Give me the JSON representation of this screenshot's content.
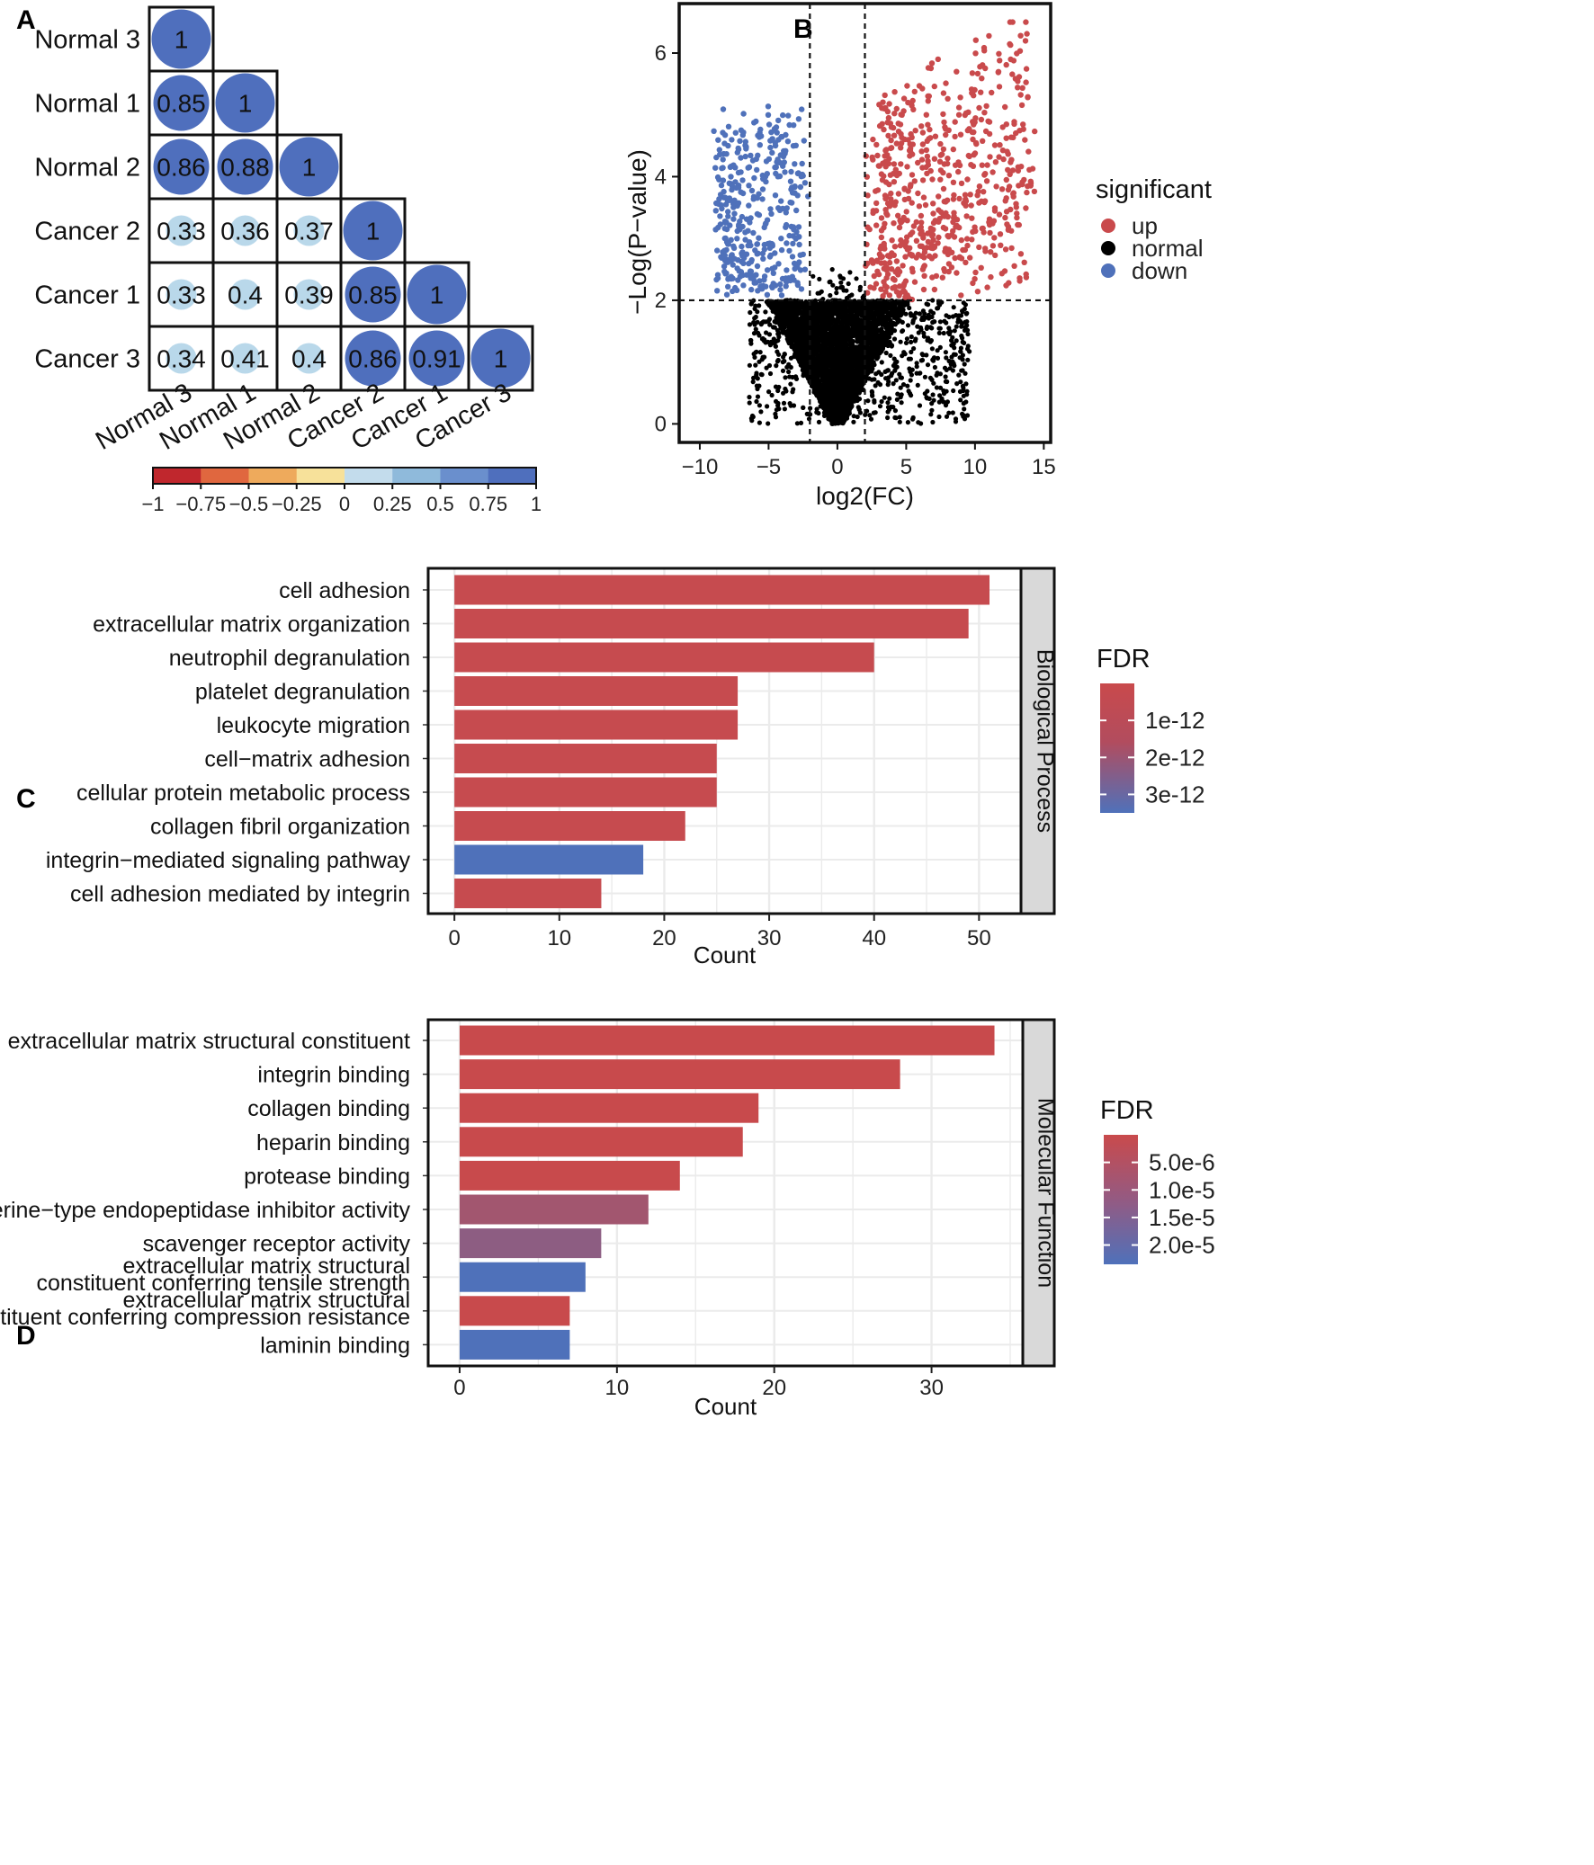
{
  "colors": {
    "up": "#c94a4c",
    "down": "#4f71ba",
    "normal": "#000000",
    "fdr_low": "#c94a4c",
    "fdr_high": "#4f71ba",
    "grid": "#ebebeb",
    "strip_bg": "#d9d9d9"
  },
  "chart_data": [
    {
      "panel": "A",
      "type": "heatmap",
      "title": "",
      "labels": [
        "Normal 3",
        "Normal 1",
        "Normal 2",
        "Cancer 2",
        "Cancer 1",
        "Cancer 3"
      ],
      "matrix": [
        [
          1
        ],
        [
          0.85,
          1
        ],
        [
          0.86,
          0.88,
          1
        ],
        [
          0.33,
          0.36,
          0.37,
          1
        ],
        [
          0.33,
          0.4,
          0.39,
          0.85,
          1
        ],
        [
          0.34,
          0.41,
          0.4,
          0.86,
          0.91,
          1
        ]
      ],
      "colorbar": {
        "ticks": [
          "−1",
          "−0.75",
          "−0.5",
          "−0.25",
          "0",
          "0.25",
          "0.5",
          "0.75",
          "1"
        ],
        "colors": [
          "#c0272d",
          "#e0673f",
          "#eeaa5c",
          "#f7e19a",
          "#eef5fa",
          "#c3dcec",
          "#8fbadb",
          "#6a8fcd",
          "#4f6fbd"
        ]
      }
    },
    {
      "panel": "B",
      "type": "scatter",
      "title": "",
      "xlabel": "log2(FC)",
      "ylabel": "−Log(P−value)",
      "xlim": [
        -11.5,
        15.5
      ],
      "ylim": [
        -0.3,
        6.8
      ],
      "xticks": [
        "−10",
        "−5",
        "0",
        "5",
        "10",
        "15"
      ],
      "xtick_values": [
        -10,
        -5,
        0,
        5,
        10,
        15
      ],
      "yticks": [
        "0",
        "2",
        "4",
        "6"
      ],
      "ytick_values": [
        0,
        2,
        4,
        6
      ],
      "vlines": [
        -2,
        2
      ],
      "hline": 2,
      "legend": {
        "title": "significant",
        "entries": [
          {
            "label": "up",
            "key": "up"
          },
          {
            "label": "normal",
            "key": "normal"
          },
          {
            "label": "down",
            "key": "down"
          }
        ]
      },
      "point_groups": [
        {
          "group": "up",
          "n": 620,
          "x_range": [
            2,
            14.5
          ],
          "y_range": [
            2,
            6.5
          ]
        },
        {
          "group": "down",
          "n": 380,
          "x_range": [
            -10,
            -2
          ],
          "y_range": [
            2,
            5.9
          ]
        },
        {
          "group": "normal",
          "n": 4200,
          "x_range": [
            -8,
            11
          ],
          "y_range": [
            0,
            2.5
          ]
        }
      ]
    },
    {
      "panel": "C",
      "type": "bar",
      "orientation": "horizontal",
      "facet": "Biological Process",
      "xlabel": "Count",
      "xlim": [
        -2.5,
        54
      ],
      "xticks": [
        0,
        10,
        20,
        30,
        40,
        50
      ],
      "categories": [
        "cell adhesion",
        "extracellular matrix organization",
        "neutrophil degranulation",
        "platelet degranulation",
        "leukocyte migration",
        "cell−matrix adhesion",
        "cellular protein metabolic process",
        "collagen fibril organization",
        "integrin−mediated signaling pathway",
        "cell adhesion mediated by integrin"
      ],
      "values": [
        51,
        49,
        40,
        27,
        27,
        25,
        25,
        22,
        18,
        14
      ],
      "fill_fdr": [
        1e-13,
        1e-13,
        1e-13,
        1e-13,
        1e-13,
        1e-13,
        1e-13,
        1e-13,
        3.5e-12,
        1e-13
      ],
      "legend": {
        "title": "FDR",
        "ticks": [
          "1e-12",
          "2e-12",
          "3e-12"
        ],
        "tick_values": [
          1e-12,
          2e-12,
          3e-12
        ],
        "range": [
          0,
          3.5e-12
        ]
      }
    },
    {
      "panel": "D",
      "type": "bar",
      "orientation": "horizontal",
      "facet": "Molecular Function",
      "xlabel": "Count",
      "xlim": [
        -2,
        35.8
      ],
      "xticks": [
        0,
        10,
        20,
        30
      ],
      "categories": [
        "extracellular matrix structural constituent",
        "integrin binding",
        "collagen binding",
        "heparin binding",
        "protease binding",
        "serine−type endopeptidase inhibitor activity",
        "scavenger receptor activity",
        "extracellular matrix structural\nconstituent conferring tensile strength",
        "extracellular matrix structural\nconstituent conferring compression resistance",
        "laminin binding"
      ],
      "values": [
        34,
        28,
        19,
        18,
        14,
        12,
        9,
        8,
        7,
        7
      ],
      "fill_fdr": [
        1e-07,
        1e-07,
        1e-07,
        1e-07,
        1e-07,
        7.5e-06,
        1.15e-05,
        2.35e-05,
        1e-07,
        2.35e-05
      ],
      "legend": {
        "title": "FDR",
        "ticks": [
          "5.0e-6",
          "1.0e-5",
          "1.5e-5",
          "2.0e-5"
        ],
        "tick_values": [
          5e-06,
          1e-05,
          1.5e-05,
          2e-05
        ],
        "range": [
          0,
          2.35e-05
        ]
      }
    }
  ]
}
